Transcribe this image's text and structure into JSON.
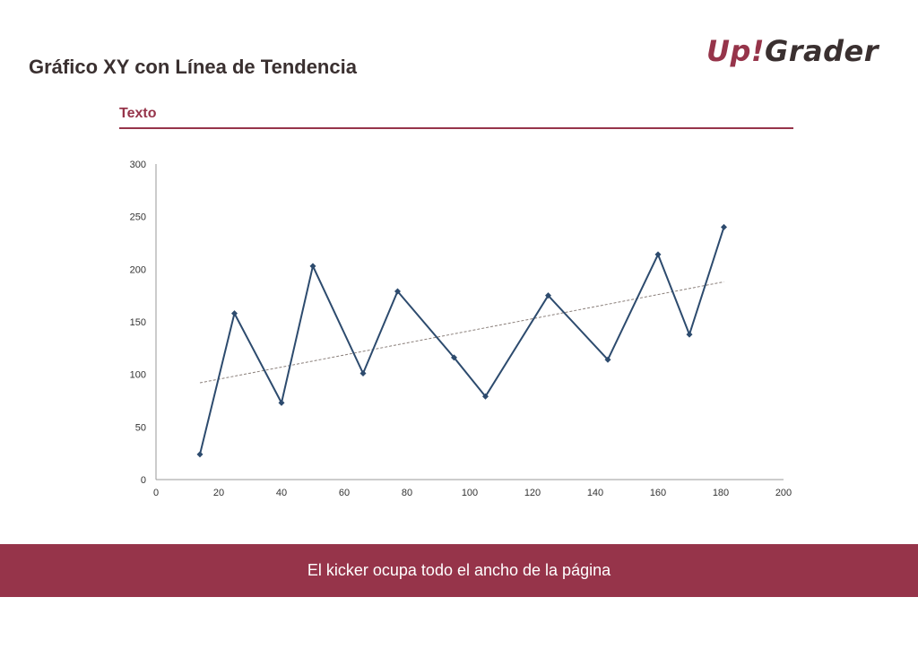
{
  "header": {
    "title": "Gráfico XY con Línea de Tendencia",
    "logo_part1": "Up!",
    "logo_part2": "Grader"
  },
  "section": {
    "label": "Texto"
  },
  "colors": {
    "brand": "#96344a",
    "series": "#2d4b6e",
    "trend": "#8a7f7a",
    "axis": "#9a9a9a"
  },
  "chart_data": {
    "type": "scatter",
    "title": "",
    "xlabel": "",
    "ylabel": "",
    "xlim": [
      0,
      200
    ],
    "ylim": [
      0,
      300
    ],
    "xticks": [
      0,
      20,
      40,
      60,
      80,
      100,
      120,
      140,
      160,
      180,
      200
    ],
    "yticks": [
      0,
      50,
      100,
      150,
      200,
      250,
      300
    ],
    "series": [
      {
        "x": [
          14,
          25,
          40,
          50,
          66,
          77,
          95,
          105,
          125,
          144,
          160,
          170,
          181
        ],
        "y": [
          24,
          158,
          73,
          203,
          101,
          179,
          116,
          79,
          175,
          114,
          214,
          138,
          240
        ]
      }
    ],
    "trendline": {
      "type": "linear",
      "x": [
        14,
        181
      ],
      "y": [
        92,
        188
      ]
    },
    "grid": false,
    "legend": "none"
  },
  "footer": {
    "kicker": "El kicker ocupa todo el ancho de la página"
  }
}
